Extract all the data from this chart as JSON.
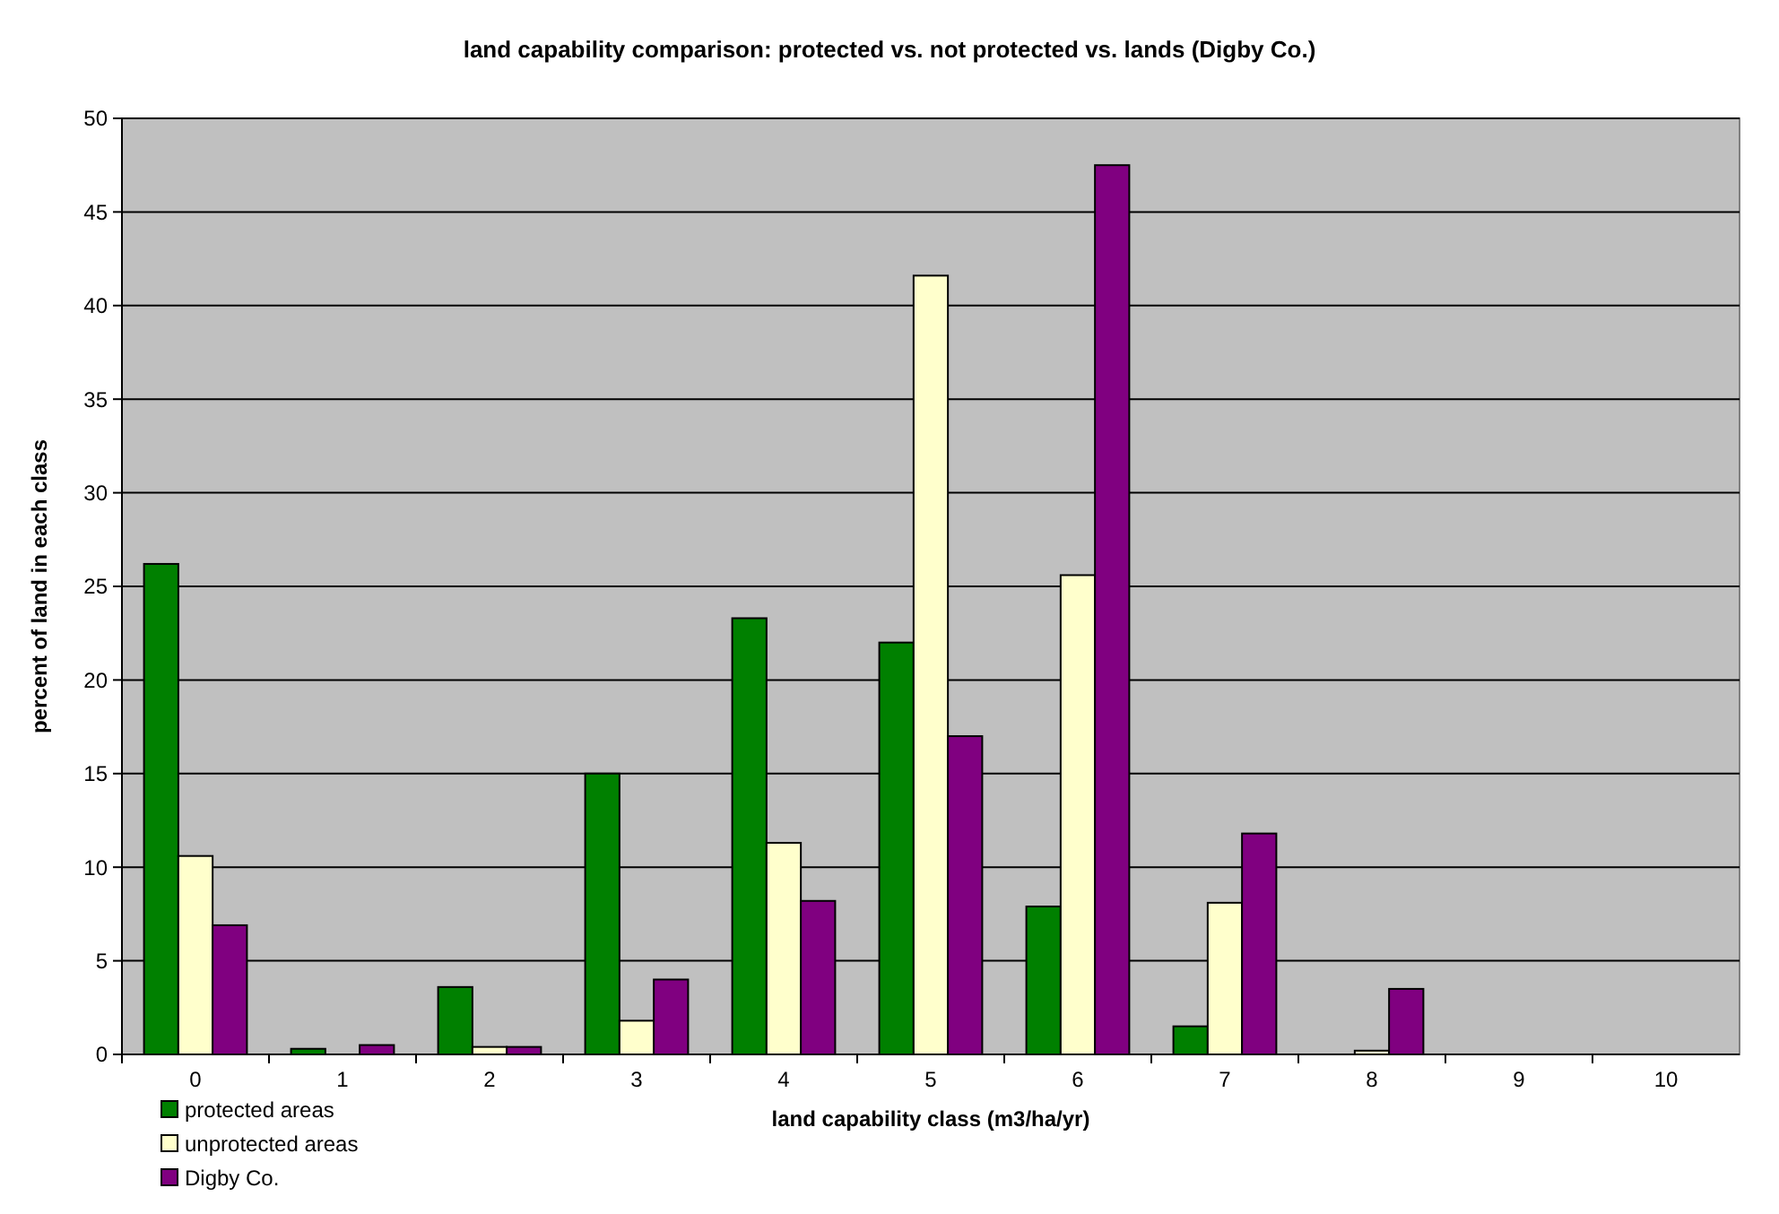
{
  "chart_data": {
    "type": "bar",
    "title": "land capability comparison: protected vs. not protected vs. lands (Digby Co.)",
    "xlabel": "land capability class (m3/ha/yr)",
    "ylabel": "percent of land in each class",
    "categories": [
      "0",
      "1",
      "2",
      "3",
      "4",
      "5",
      "6",
      "7",
      "8",
      "9",
      "10"
    ],
    "series": [
      {
        "name": "protected areas",
        "color": "#008000",
        "values": [
          26.2,
          0.3,
          3.6,
          15.0,
          23.3,
          22.0,
          7.9,
          1.5,
          0,
          0,
          0
        ]
      },
      {
        "name": "unprotected areas",
        "color": "#ffffcc",
        "values": [
          10.6,
          0,
          0.4,
          1.8,
          11.3,
          41.6,
          25.6,
          8.1,
          0.2,
          0,
          0
        ]
      },
      {
        "name": "Digby Co.",
        "color": "#800080",
        "values": [
          6.9,
          0.5,
          0.4,
          4.0,
          8.2,
          17.0,
          47.5,
          11.8,
          3.5,
          0,
          0
        ]
      }
    ],
    "ylim": [
      0,
      50
    ],
    "yticks": [
      0,
      5,
      10,
      15,
      20,
      25,
      30,
      35,
      40,
      45,
      50
    ],
    "grid": "y",
    "legend": "bottom left"
  }
}
